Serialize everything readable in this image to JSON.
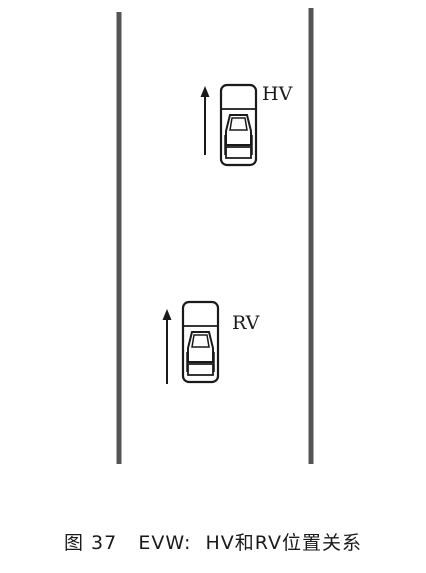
{
  "vehicles": {
    "host": {
      "label": "HV"
    },
    "remote": {
      "label": "RV"
    }
  },
  "caption": {
    "figure_number": "图 37",
    "text": "EVW:  HV和RV位置关系"
  },
  "icons": {
    "vehicle": "car-top-view-icon",
    "direction": "up-arrow-icon"
  },
  "colors": {
    "road_line": "#555555",
    "ink": "#1a1a1a"
  }
}
